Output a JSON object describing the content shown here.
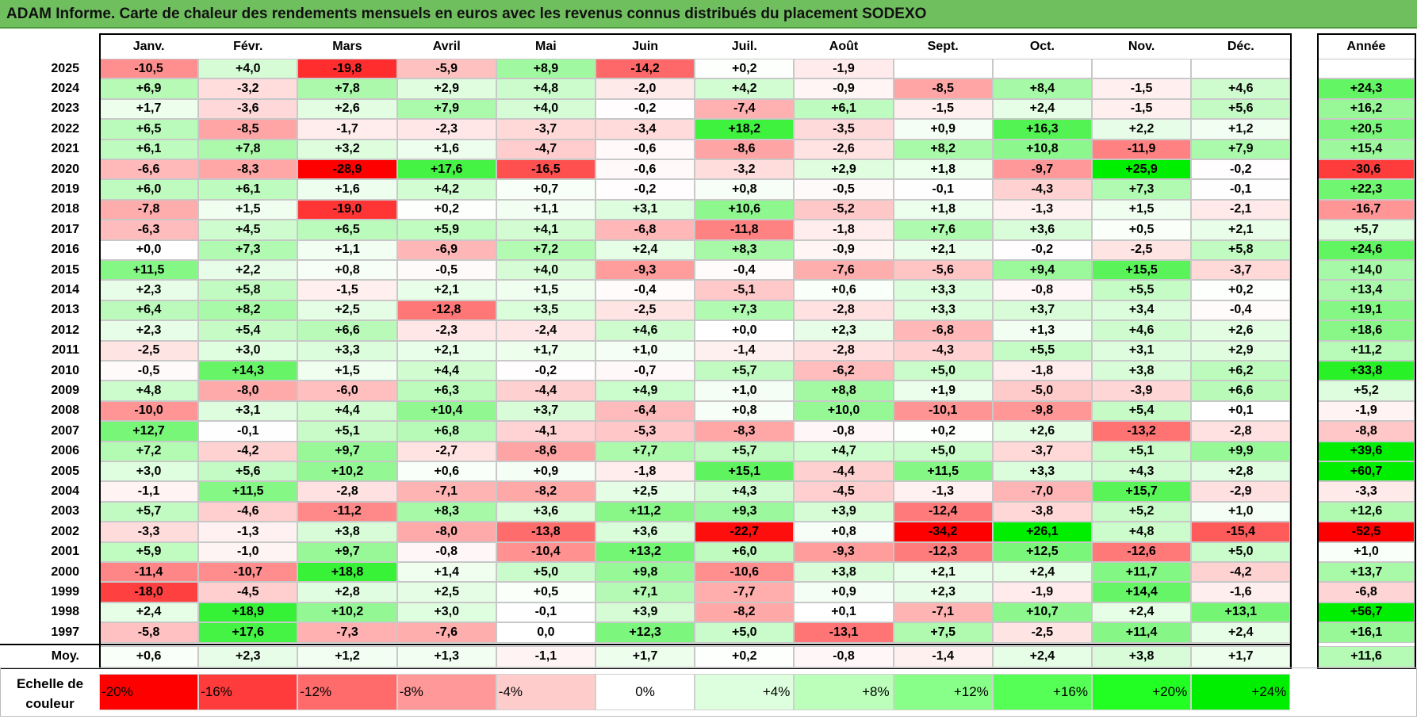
{
  "title": "ADAM Informe. Carte de chaleur des rendements mensuels en euros avec les revenus connus distribués du placement SODEXO",
  "chart_data": {
    "type": "heatmap",
    "columns": [
      "Janv.",
      "Févr.",
      "Mars",
      "Avril",
      "Mai",
      "Juin",
      "Juil.",
      "Août",
      "Sept.",
      "Oct.",
      "Nov.",
      "Déc."
    ],
    "year_column_label": "Année",
    "rows": [
      {
        "year": "2025",
        "values": [
          "-10,5",
          "+4,0",
          "-19,8",
          "-5,9",
          "+8,9",
          "-14,2",
          "+0,2",
          "-1,9",
          "",
          "",
          "",
          ""
        ],
        "annual": ""
      },
      {
        "year": "2024",
        "values": [
          "+6,9",
          "-3,2",
          "+7,8",
          "+2,9",
          "+4,8",
          "-2,0",
          "+4,2",
          "-0,9",
          "-8,5",
          "+8,4",
          "-1,5",
          "+4,6"
        ],
        "annual": "+24,3"
      },
      {
        "year": "2023",
        "values": [
          "+1,7",
          "-3,6",
          "+2,6",
          "+7,9",
          "+4,0",
          "-0,2",
          "-7,4",
          "+6,1",
          "-1,5",
          "+2,4",
          "-1,5",
          "+5,6"
        ],
        "annual": "+16,2"
      },
      {
        "year": "2022",
        "values": [
          "+6,5",
          "-8,5",
          "-1,7",
          "-2,3",
          "-3,7",
          "-3,4",
          "+18,2",
          "-3,5",
          "+0,9",
          "+16,3",
          "+2,2",
          "+1,2"
        ],
        "annual": "+20,5"
      },
      {
        "year": "2021",
        "values": [
          "+6,1",
          "+7,8",
          "+3,2",
          "+1,6",
          "-4,7",
          "-0,6",
          "-8,6",
          "-2,6",
          "+8,2",
          "+10,8",
          "-11,9",
          "+7,9"
        ],
        "annual": "+15,4"
      },
      {
        "year": "2020",
        "values": [
          "-6,6",
          "-8,3",
          "-28,9",
          "+17,6",
          "-16,5",
          "-0,6",
          "-3,2",
          "+2,9",
          "+1,8",
          "-9,7",
          "+25,9",
          "-0,2"
        ],
        "annual": "-30,6"
      },
      {
        "year": "2019",
        "values": [
          "+6,0",
          "+6,1",
          "+1,6",
          "+4,2",
          "+0,7",
          "-0,2",
          "+0,8",
          "-0,5",
          "-0,1",
          "-4,3",
          "+7,3",
          "-0,1"
        ],
        "annual": "+22,3"
      },
      {
        "year": "2018",
        "values": [
          "-7,8",
          "+1,5",
          "-19,0",
          "+0,2",
          "+1,1",
          "+3,1",
          "+10,6",
          "-5,2",
          "+1,8",
          "-1,3",
          "+1,5",
          "-2,1"
        ],
        "annual": "-16,7"
      },
      {
        "year": "2017",
        "values": [
          "-6,3",
          "+4,5",
          "+6,5",
          "+5,9",
          "+4,1",
          "-6,8",
          "-11,8",
          "-1,8",
          "+7,6",
          "+3,6",
          "+0,5",
          "+2,1"
        ],
        "annual": "+5,7"
      },
      {
        "year": "2016",
        "values": [
          "+0,0",
          "+7,3",
          "+1,1",
          "-6,9",
          "+7,2",
          "+2,4",
          "+8,3",
          "-0,9",
          "+2,1",
          "-0,2",
          "-2,5",
          "+5,8"
        ],
        "annual": "+24,6"
      },
      {
        "year": "2015",
        "values": [
          "+11,5",
          "+2,2",
          "+0,8",
          "-0,5",
          "+4,0",
          "-9,3",
          "-0,4",
          "-7,6",
          "-5,6",
          "+9,4",
          "+15,5",
          "-3,7"
        ],
        "annual": "+14,0"
      },
      {
        "year": "2014",
        "values": [
          "+2,3",
          "+5,8",
          "-1,5",
          "+2,1",
          "+1,5",
          "-0,4",
          "-5,1",
          "+0,6",
          "+3,3",
          "-0,8",
          "+5,5",
          "+0,2"
        ],
        "annual": "+13,4"
      },
      {
        "year": "2013",
        "values": [
          "+6,4",
          "+8,2",
          "+2,5",
          "-12,8",
          "+3,5",
          "-2,5",
          "+7,3",
          "-2,8",
          "+3,3",
          "+3,7",
          "+3,4",
          "-0,4"
        ],
        "annual": "+19,1"
      },
      {
        "year": "2012",
        "values": [
          "+2,3",
          "+5,4",
          "+6,6",
          "-2,3",
          "-2,4",
          "+4,6",
          "+0,0",
          "+2,3",
          "-6,8",
          "+1,3",
          "+4,6",
          "+2,6"
        ],
        "annual": "+18,6"
      },
      {
        "year": "2011",
        "values": [
          "-2,5",
          "+3,0",
          "+3,3",
          "+2,1",
          "+1,7",
          "+1,0",
          "-1,4",
          "-2,8",
          "-4,3",
          "+5,5",
          "+3,1",
          "+2,9"
        ],
        "annual": "+11,2"
      },
      {
        "year": "2010",
        "values": [
          "-0,5",
          "+14,3",
          "+1,5",
          "+4,4",
          "-0,2",
          "-0,7",
          "+5,7",
          "-6,2",
          "+5,0",
          "-1,8",
          "+3,8",
          "+6,2"
        ],
        "annual": "+33,8"
      },
      {
        "year": "2009",
        "values": [
          "+4,8",
          "-8,0",
          "-6,0",
          "+6,3",
          "-4,4",
          "+4,9",
          "+1,0",
          "+8,8",
          "+1,9",
          "-5,0",
          "-3,9",
          "+6,6"
        ],
        "annual": "+5,2"
      },
      {
        "year": "2008",
        "values": [
          "-10,0",
          "+3,1",
          "+4,4",
          "+10,4",
          "+3,7",
          "-6,4",
          "+0,8",
          "+10,0",
          "-10,1",
          "-9,8",
          "+5,4",
          "+0,1"
        ],
        "annual": "-1,9"
      },
      {
        "year": "2007",
        "values": [
          "+12,7",
          "-0,1",
          "+5,1",
          "+6,8",
          "-4,1",
          "-5,3",
          "-8,3",
          "-0,8",
          "+0,2",
          "+2,6",
          "-13,2",
          "-2,8"
        ],
        "annual": "-8,8"
      },
      {
        "year": "2006",
        "values": [
          "+7,2",
          "-4,2",
          "+9,7",
          "-2,7",
          "-8,6",
          "+7,7",
          "+5,7",
          "+4,7",
          "+5,0",
          "-3,7",
          "+5,1",
          "+9,9"
        ],
        "annual": "+39,6"
      },
      {
        "year": "2005",
        "values": [
          "+3,0",
          "+5,6",
          "+10,2",
          "+0,6",
          "+0,9",
          "-1,8",
          "+15,1",
          "-4,4",
          "+11,5",
          "+3,3",
          "+4,3",
          "+2,8"
        ],
        "annual": "+60,7"
      },
      {
        "year": "2004",
        "values": [
          "-1,1",
          "+11,5",
          "-2,8",
          "-7,1",
          "-8,2",
          "+2,5",
          "+4,3",
          "-4,5",
          "-1,3",
          "-7,0",
          "+15,7",
          "-2,9"
        ],
        "annual": "-3,3"
      },
      {
        "year": "2003",
        "values": [
          "+5,7",
          "-4,6",
          "-11,2",
          "+8,3",
          "+3,6",
          "+11,2",
          "+9,3",
          "+3,9",
          "-12,4",
          "-3,8",
          "+5,2",
          "+1,0"
        ],
        "annual": "+12,6"
      },
      {
        "year": "2002",
        "values": [
          "-3,3",
          "-1,3",
          "+3,8",
          "-8,0",
          "-13,8",
          "+3,6",
          "-22,7",
          "+0,8",
          "-34,2",
          "+26,1",
          "+4,8",
          "-15,4"
        ],
        "annual": "-52,5"
      },
      {
        "year": "2001",
        "values": [
          "+5,9",
          "-1,0",
          "+9,7",
          "-0,8",
          "-10,4",
          "+13,2",
          "+6,0",
          "-9,3",
          "-12,3",
          "+12,5",
          "-12,6",
          "+5,0"
        ],
        "annual": "+1,0"
      },
      {
        "year": "2000",
        "values": [
          "-11,4",
          "-10,7",
          "+18,8",
          "+1,4",
          "+5,0",
          "+9,8",
          "-10,6",
          "+3,8",
          "+2,1",
          "+2,4",
          "+11,7",
          "-4,2"
        ],
        "annual": "+13,7"
      },
      {
        "year": "1999",
        "values": [
          "-18,0",
          "-4,5",
          "+2,8",
          "+2,5",
          "+0,5",
          "+7,1",
          "-7,7",
          "+0,9",
          "+2,3",
          "-1,9",
          "+14,4",
          "-1,6"
        ],
        "annual": "-6,8"
      },
      {
        "year": "1998",
        "values": [
          "+2,4",
          "+18,9",
          "+10,2",
          "+3,0",
          "-0,1",
          "+3,9",
          "-8,2",
          "+0,1",
          "-7,1",
          "+10,7",
          "+2,4",
          "+13,1"
        ],
        "annual": "+56,7"
      },
      {
        "year": "1997",
        "values": [
          "-5,8",
          "+17,6",
          "-7,3",
          "-7,6",
          "0,0",
          "+12,3",
          "+5,0",
          "-13,1",
          "+7,5",
          "-2,5",
          "+11,4",
          "+2,4"
        ],
        "annual": "+16,1"
      }
    ],
    "average": {
      "label": "Moy.",
      "values": [
        "+0,6",
        "+2,3",
        "+1,2",
        "+1,3",
        "-1,1",
        "+1,7",
        "+0,2",
        "-0,8",
        "-1,4",
        "+2,4",
        "+3,8",
        "+1,7"
      ],
      "annual": "+11,6"
    },
    "color_scale": {
      "label_line1": "Echelle de",
      "label_line2": "couleur",
      "stops": [
        "-20%",
        "-16%",
        "-12%",
        "-8%",
        "-4%",
        "0%",
        "+4%",
        "+8%",
        "+12%",
        "+16%",
        "+20%",
        "+24%"
      ],
      "stop_values": [
        -20,
        -16,
        -12,
        -8,
        -4,
        0,
        4,
        8,
        12,
        16,
        20,
        24
      ],
      "stop_colors": [
        "#ff0000",
        "#ff3b3b",
        "#ff6a6a",
        "#ff9999",
        "#ffcccc",
        "#ffffff",
        "#ddffdd",
        "#bbffbb",
        "#88ff88",
        "#55ff55",
        "#22ff22",
        "#00ee00"
      ],
      "negative_color": "#ff0000",
      "positive_color": "#00ee00",
      "neutral_color": "#ffffff"
    }
  }
}
